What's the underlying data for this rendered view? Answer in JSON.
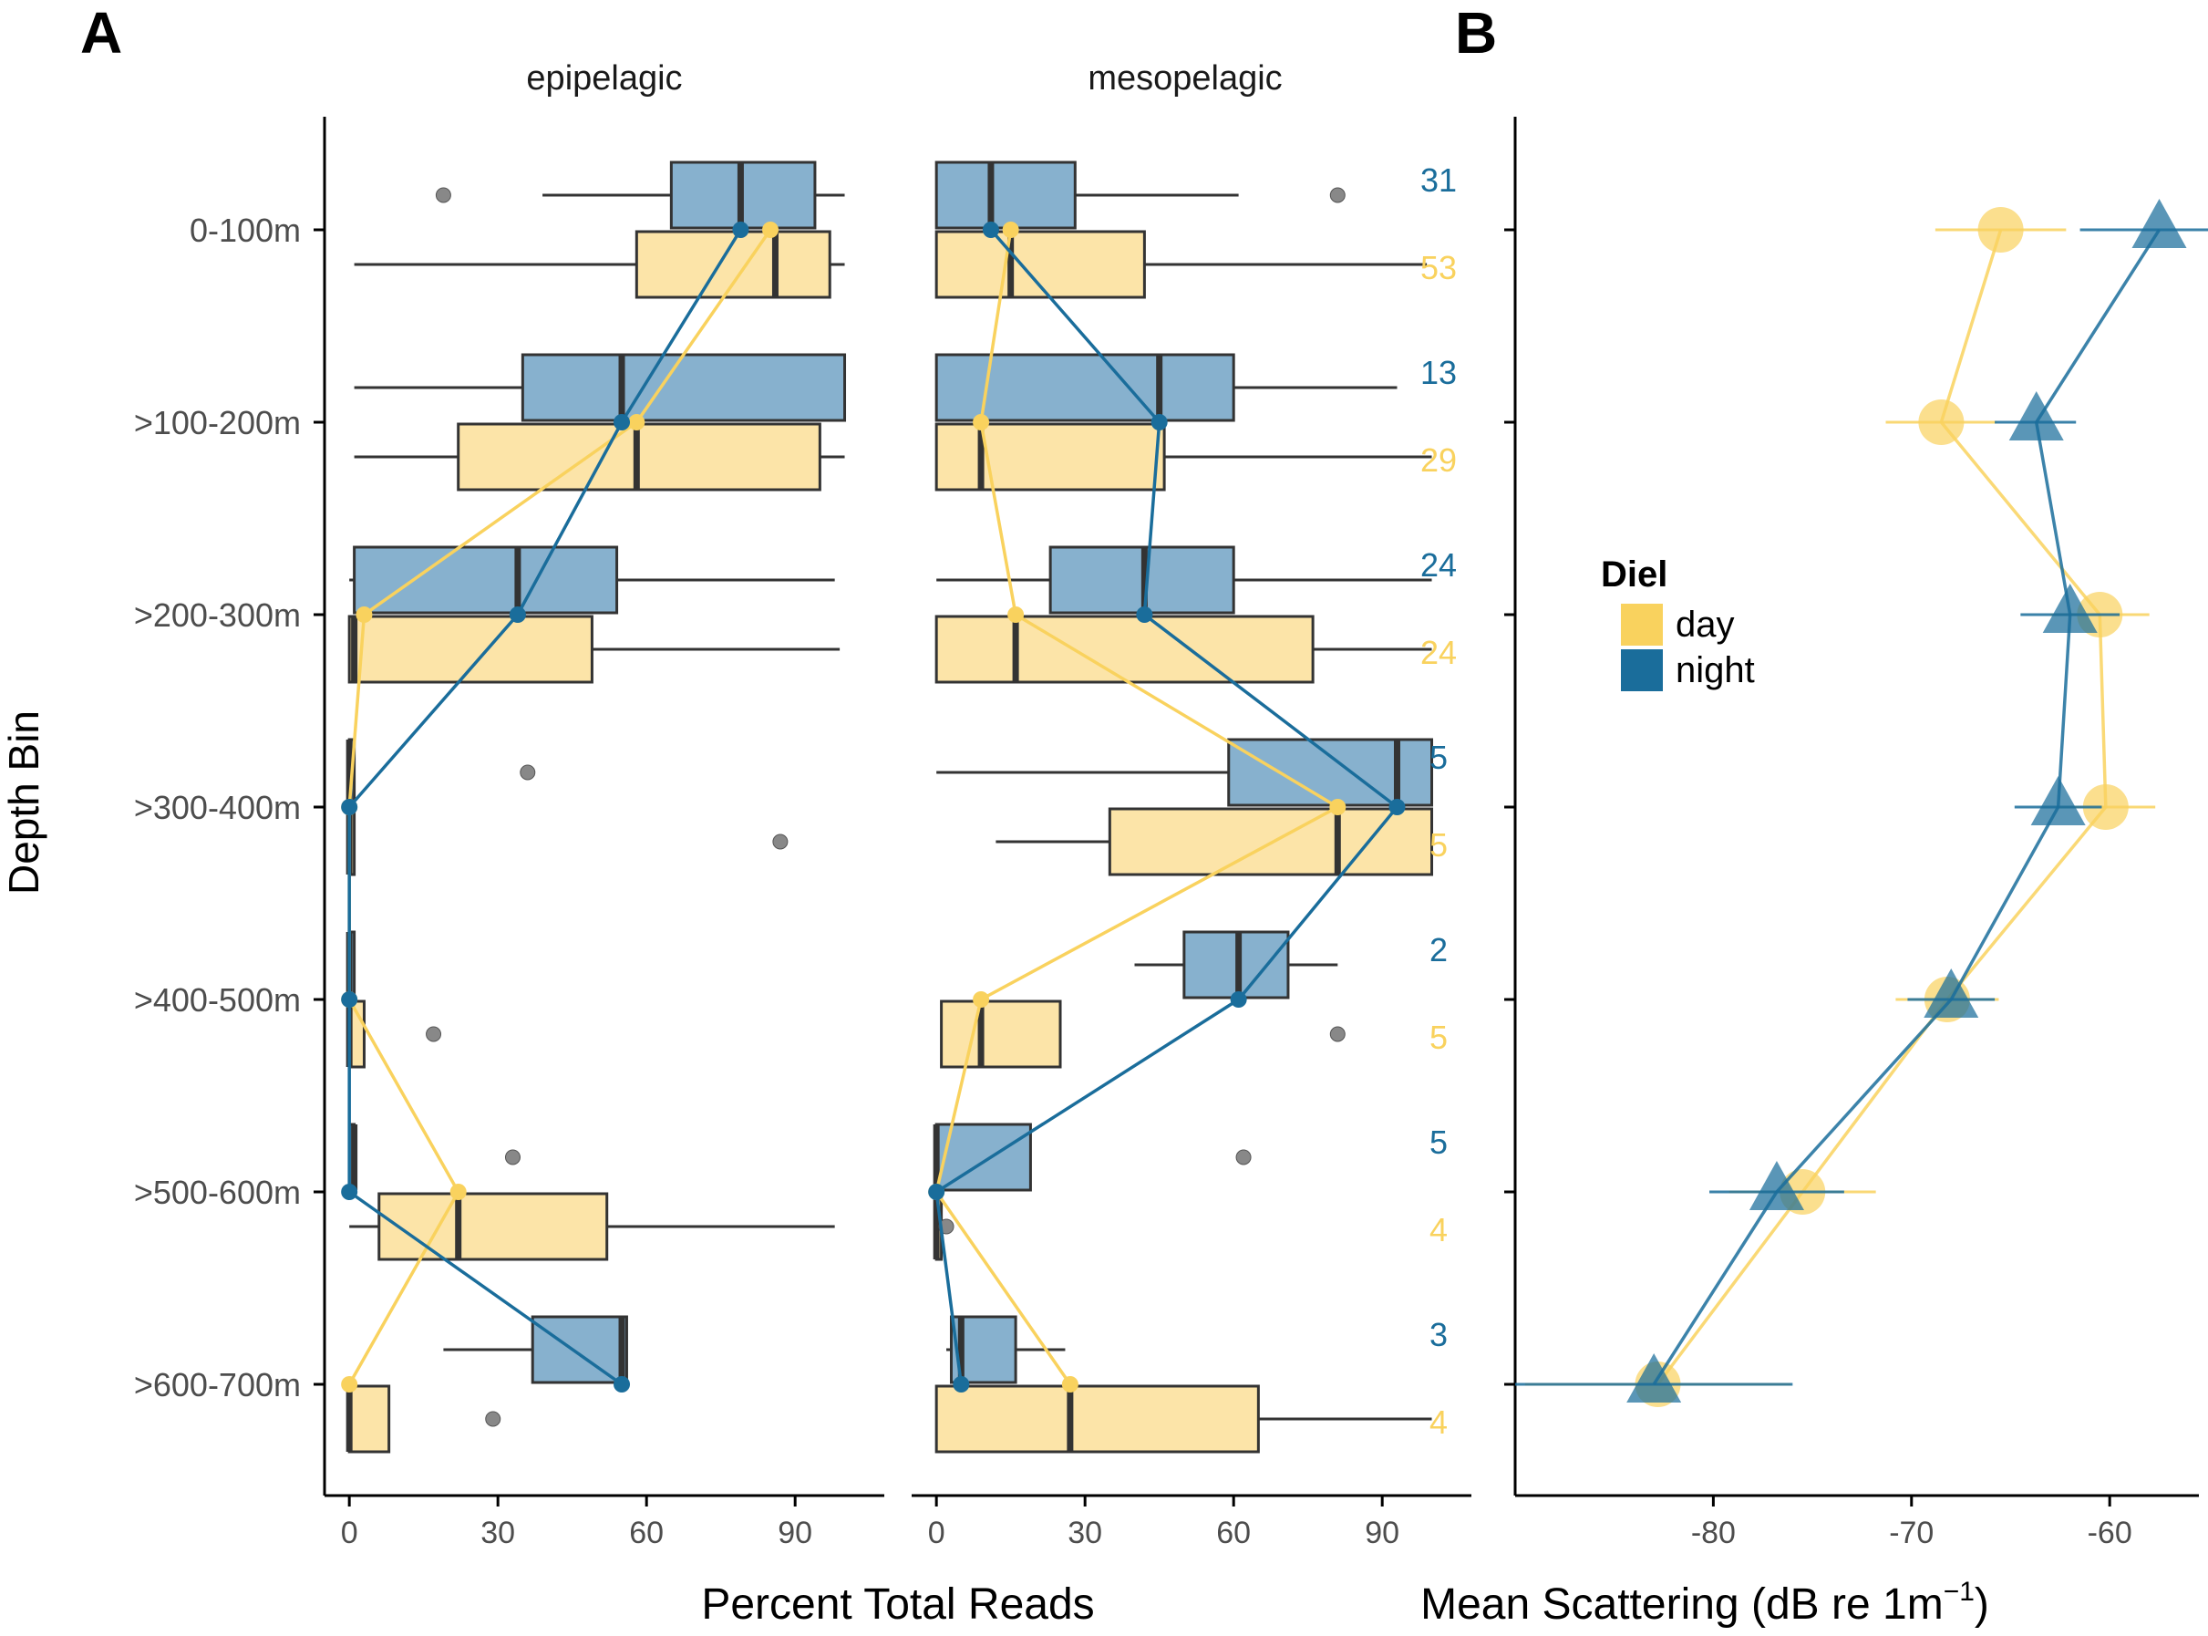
{
  "panel_labels": {
    "a": "A",
    "b": "B"
  },
  "colors": {
    "day": "#F9D25E",
    "night": "#1A6D9B",
    "day_box": "#FCE4A8",
    "night_box": "#87B1CE",
    "box_edge": "#333333",
    "outlier": "#888888",
    "axis": "#000000",
    "tick_text": "#4D4D4D"
  },
  "chart_data": [
    {
      "type": "box",
      "title": "epipelagic",
      "xlabel": "Percent Total Reads",
      "ylabel": "Depth Bin",
      "xlim": [
        -5,
        108
      ],
      "xticks": [
        "0",
        "30",
        "60",
        "90"
      ],
      "categories": [
        "0-100m",
        ">100-200m",
        ">200-300m",
        ">300-400m",
        ">400-500m",
        ">500-600m",
        ">600-700m"
      ],
      "series": [
        {
          "name": "night",
          "boxes": [
            {
              "min": 39,
              "q1": 65,
              "median": 79,
              "q3": 94,
              "max": 100,
              "outliers": [
                19
              ]
            },
            {
              "min": 1,
              "q1": 35,
              "median": 55,
              "q3": 100,
              "max": 100,
              "outliers": []
            },
            {
              "min": 0,
              "q1": 1,
              "median": 34,
              "q3": 54,
              "max": 98,
              "outliers": []
            },
            {
              "min": 0,
              "q1": 0,
              "median": 0,
              "q3": 1,
              "max": 1,
              "outliers": [
                36
              ]
            },
            {
              "min": 0,
              "q1": 0,
              "median": 0,
              "q3": 1,
              "max": 1,
              "outliers": []
            },
            {
              "min": 0,
              "q1": 0,
              "median": 1,
              "q3": 1,
              "max": 1,
              "outliers": [
                33
              ]
            },
            {
              "min": 19,
              "q1": 37,
              "median": 55,
              "q3": 56,
              "max": 56,
              "outliers": []
            }
          ],
          "means": [
            79,
            55,
            34,
            0,
            0,
            0,
            55
          ]
        },
        {
          "name": "day",
          "boxes": [
            {
              "min": 1,
              "q1": 58,
              "median": 86,
              "q3": 97,
              "max": 100,
              "outliers": []
            },
            {
              "min": 1,
              "q1": 22,
              "median": 58,
              "q3": 95,
              "max": 100,
              "outliers": []
            },
            {
              "min": 0,
              "q1": 0,
              "median": 1,
              "q3": 49,
              "max": 99,
              "outliers": []
            },
            {
              "min": 0,
              "q1": 0,
              "median": 0,
              "q3": 1,
              "max": 1,
              "outliers": [
                87
              ]
            },
            {
              "min": 0,
              "q1": 0,
              "median": 0,
              "q3": 3,
              "max": 3,
              "outliers": [
                17
              ]
            },
            {
              "min": 0,
              "q1": 6,
              "median": 22,
              "q3": 52,
              "max": 98,
              "outliers": []
            },
            {
              "min": 0,
              "q1": 0,
              "median": 0,
              "q3": 8,
              "max": 8,
              "outliers": [
                29
              ]
            }
          ],
          "means": [
            85,
            58,
            3,
            0,
            0,
            22,
            0
          ]
        }
      ]
    },
    {
      "type": "box",
      "title": "mesopelagic",
      "xlabel": "Percent Total Reads",
      "xlim": [
        -5,
        108
      ],
      "xticks": [
        "0",
        "30",
        "60",
        "90"
      ],
      "categories": [
        "0-100m",
        ">100-200m",
        ">200-300m",
        ">300-400m",
        ">400-500m",
        ">500-600m",
        ">600-700m"
      ],
      "sample_counts": {
        "night": [
          "31",
          "13",
          "24",
          "5",
          "2",
          "5",
          "3"
        ],
        "day": [
          "53",
          "29",
          "24",
          "5",
          "5",
          "4",
          "4"
        ]
      },
      "series": [
        {
          "name": "night",
          "boxes": [
            {
              "min": 0,
              "q1": 0,
              "median": 11,
              "q3": 28,
              "max": 61,
              "outliers": [
                81
              ]
            },
            {
              "min": 0,
              "q1": 0,
              "median": 45,
              "q3": 60,
              "max": 93,
              "outliers": []
            },
            {
              "min": 0,
              "q1": 23,
              "median": 42,
              "q3": 60,
              "max": 100,
              "outliers": []
            },
            {
              "min": 0,
              "q1": 59,
              "median": 93,
              "q3": 100,
              "max": 100,
              "outliers": []
            },
            {
              "min": 40,
              "q1": 50,
              "median": 61,
              "q3": 71,
              "max": 81,
              "outliers": []
            },
            {
              "min": 0,
              "q1": 0,
              "median": 0,
              "q3": 19,
              "max": 19,
              "outliers": [
                62
              ]
            },
            {
              "min": 2,
              "q1": 3,
              "median": 5,
              "q3": 16,
              "max": 26,
              "outliers": []
            }
          ],
          "means": [
            11,
            45,
            42,
            93,
            61,
            0,
            5
          ]
        },
        {
          "name": "day",
          "boxes": [
            {
              "min": 0,
              "q1": 0,
              "median": 15,
              "q3": 42,
              "max": 99,
              "outliers": []
            },
            {
              "min": 0,
              "q1": 0,
              "median": 9,
              "q3": 46,
              "max": 100,
              "outliers": []
            },
            {
              "min": 0,
              "q1": 0,
              "median": 16,
              "q3": 76,
              "max": 100,
              "outliers": []
            },
            {
              "min": 12,
              "q1": 35,
              "median": 81,
              "q3": 100,
              "max": 100,
              "outliers": []
            },
            {
              "min": 1,
              "q1": 1,
              "median": 9,
              "q3": 25,
              "max": 25,
              "outliers": [
                81
              ]
            },
            {
              "min": 0,
              "q1": 0,
              "median": 0,
              "q3": 1,
              "max": 1,
              "outliers": [
                2
              ]
            },
            {
              "min": 0,
              "q1": 0,
              "median": 27,
              "q3": 65,
              "max": 100,
              "outliers": []
            }
          ],
          "means": [
            15,
            9,
            16,
            81,
            9,
            0,
            27
          ]
        }
      ]
    },
    {
      "type": "scatter",
      "xlabel": "Mean  Scattering (dB  re  1m",
      "xlabel_superscript": "−1",
      "xlabel_close": ")",
      "xlim": [
        -90,
        -55.5
      ],
      "xticks": [
        "-80",
        "-70",
        "-60"
      ],
      "legend": {
        "title": "Diel",
        "placement": "left, mid-height",
        "entries": [
          "day",
          "night"
        ]
      },
      "categories": [
        "0-100m",
        ">100-200m",
        ">200-300m",
        ">300-400m",
        ">400-500m",
        ">500-600m",
        ">600-700m"
      ],
      "series": [
        {
          "name": "day",
          "marker": "circle",
          "values": [
            -65.5,
            -68.5,
            -60.5,
            -60.2,
            -68.2,
            -75.5,
            -82.8
          ],
          "err_low": [
            -68.8,
            -71.3,
            -63.0,
            -62.7,
            -70.8,
            -79.2,
            -89.5
          ],
          "err_high": [
            -62.2,
            -65.7,
            -58.0,
            -57.7,
            -65.6,
            -71.8,
            -76.1
          ]
        },
        {
          "name": "night",
          "marker": "triangle",
          "values": [
            -57.5,
            -63.7,
            -62.0,
            -62.6,
            -68.0,
            -76.8,
            -83.0
          ],
          "err_low": [
            -61.5,
            -65.8,
            -64.5,
            -64.8,
            -70.2,
            -80.2,
            -90.0
          ],
          "err_high": [
            -53.5,
            -61.7,
            -59.5,
            -60.4,
            -65.8,
            -73.4,
            -76.0
          ]
        }
      ]
    }
  ]
}
